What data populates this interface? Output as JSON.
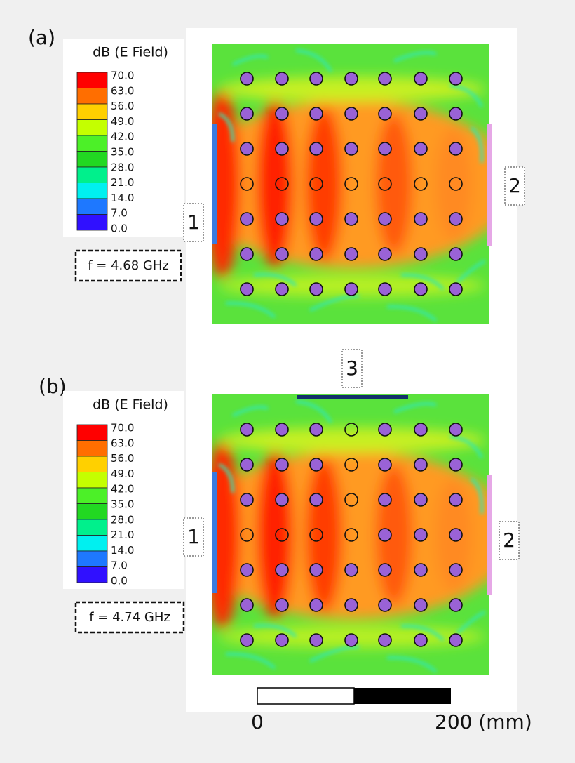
{
  "panels": [
    {
      "label": "(a)",
      "legend_title": "dB (E Field)",
      "legend_values": [
        "70.0",
        "63.0",
        "56.0",
        "49.0",
        "42.0",
        "35.0",
        "28.0",
        "21.0",
        "14.0",
        "7.0",
        "0.0"
      ],
      "frequency": "f = 4.68 GHz",
      "ports": [
        "1",
        "2"
      ]
    },
    {
      "label": "(b)",
      "legend_title": "dB (E Field)",
      "legend_values": [
        "70.0",
        "63.0",
        "56.0",
        "49.0",
        "42.0",
        "35.0",
        "28.0",
        "21.0",
        "14.0",
        "7.0",
        "0.0"
      ],
      "frequency": "f = 4.74 GHz",
      "ports": [
        "1",
        "2",
        "3"
      ]
    }
  ],
  "scale_bar": {
    "start": "0",
    "end": "200 (mm)"
  }
}
